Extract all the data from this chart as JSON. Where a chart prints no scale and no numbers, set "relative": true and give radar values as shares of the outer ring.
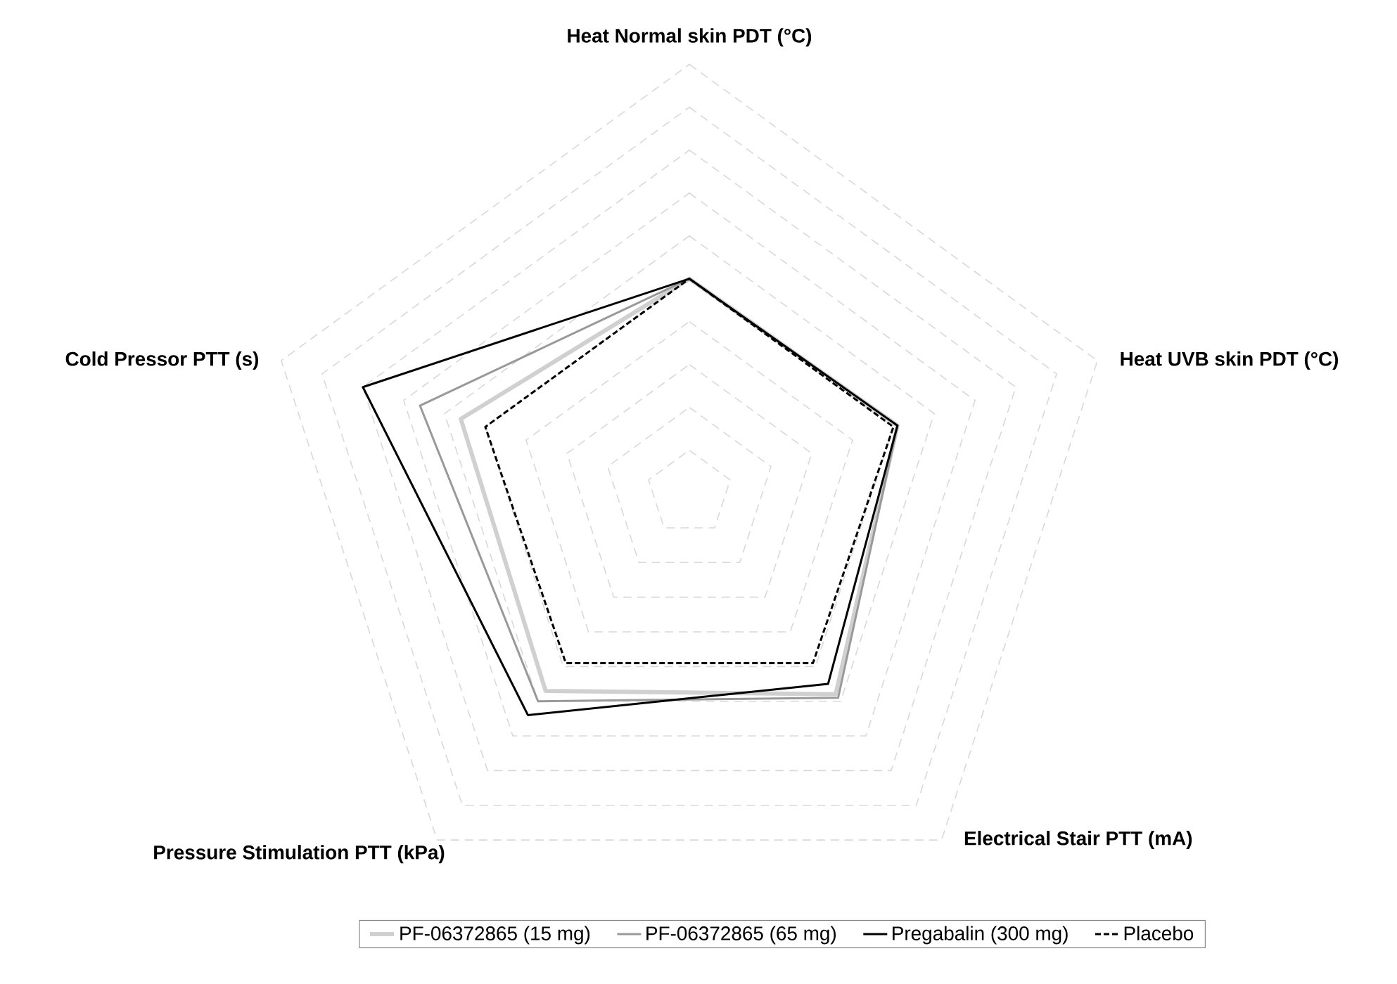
{
  "chart_data": {
    "type": "radar",
    "relative": true,
    "grid": true,
    "legend": "bottom",
    "categories": [
      "Heat Normal skin PDT (°C)",
      "Heat UVB skin PDT (°C)",
      "Electrical Stair PTT (mA)",
      "Pressure Stimulation PTT (kPa)",
      "Cold Pressor PTT (s)"
    ],
    "series": [
      {
        "name": "PF-06372865 (15 mg)",
        "color": "#d0d0d0",
        "values": [
          0.5,
          0.51,
          0.58,
          0.57,
          0.56
        ]
      },
      {
        "name": "PF-06372865 (65 mg)",
        "color": "#999999",
        "values": [
          0.5,
          0.51,
          0.59,
          0.6,
          0.66
        ]
      },
      {
        "name": "Pregabalin (300 mg)",
        "color": "#000000",
        "values": [
          0.5,
          0.51,
          0.55,
          0.64,
          0.8
        ]
      },
      {
        "name": "Placebo",
        "color": "#000000",
        "line_style": "dashed",
        "values": [
          0.5,
          0.5,
          0.49,
          0.49,
          0.5
        ]
      }
    ]
  }
}
